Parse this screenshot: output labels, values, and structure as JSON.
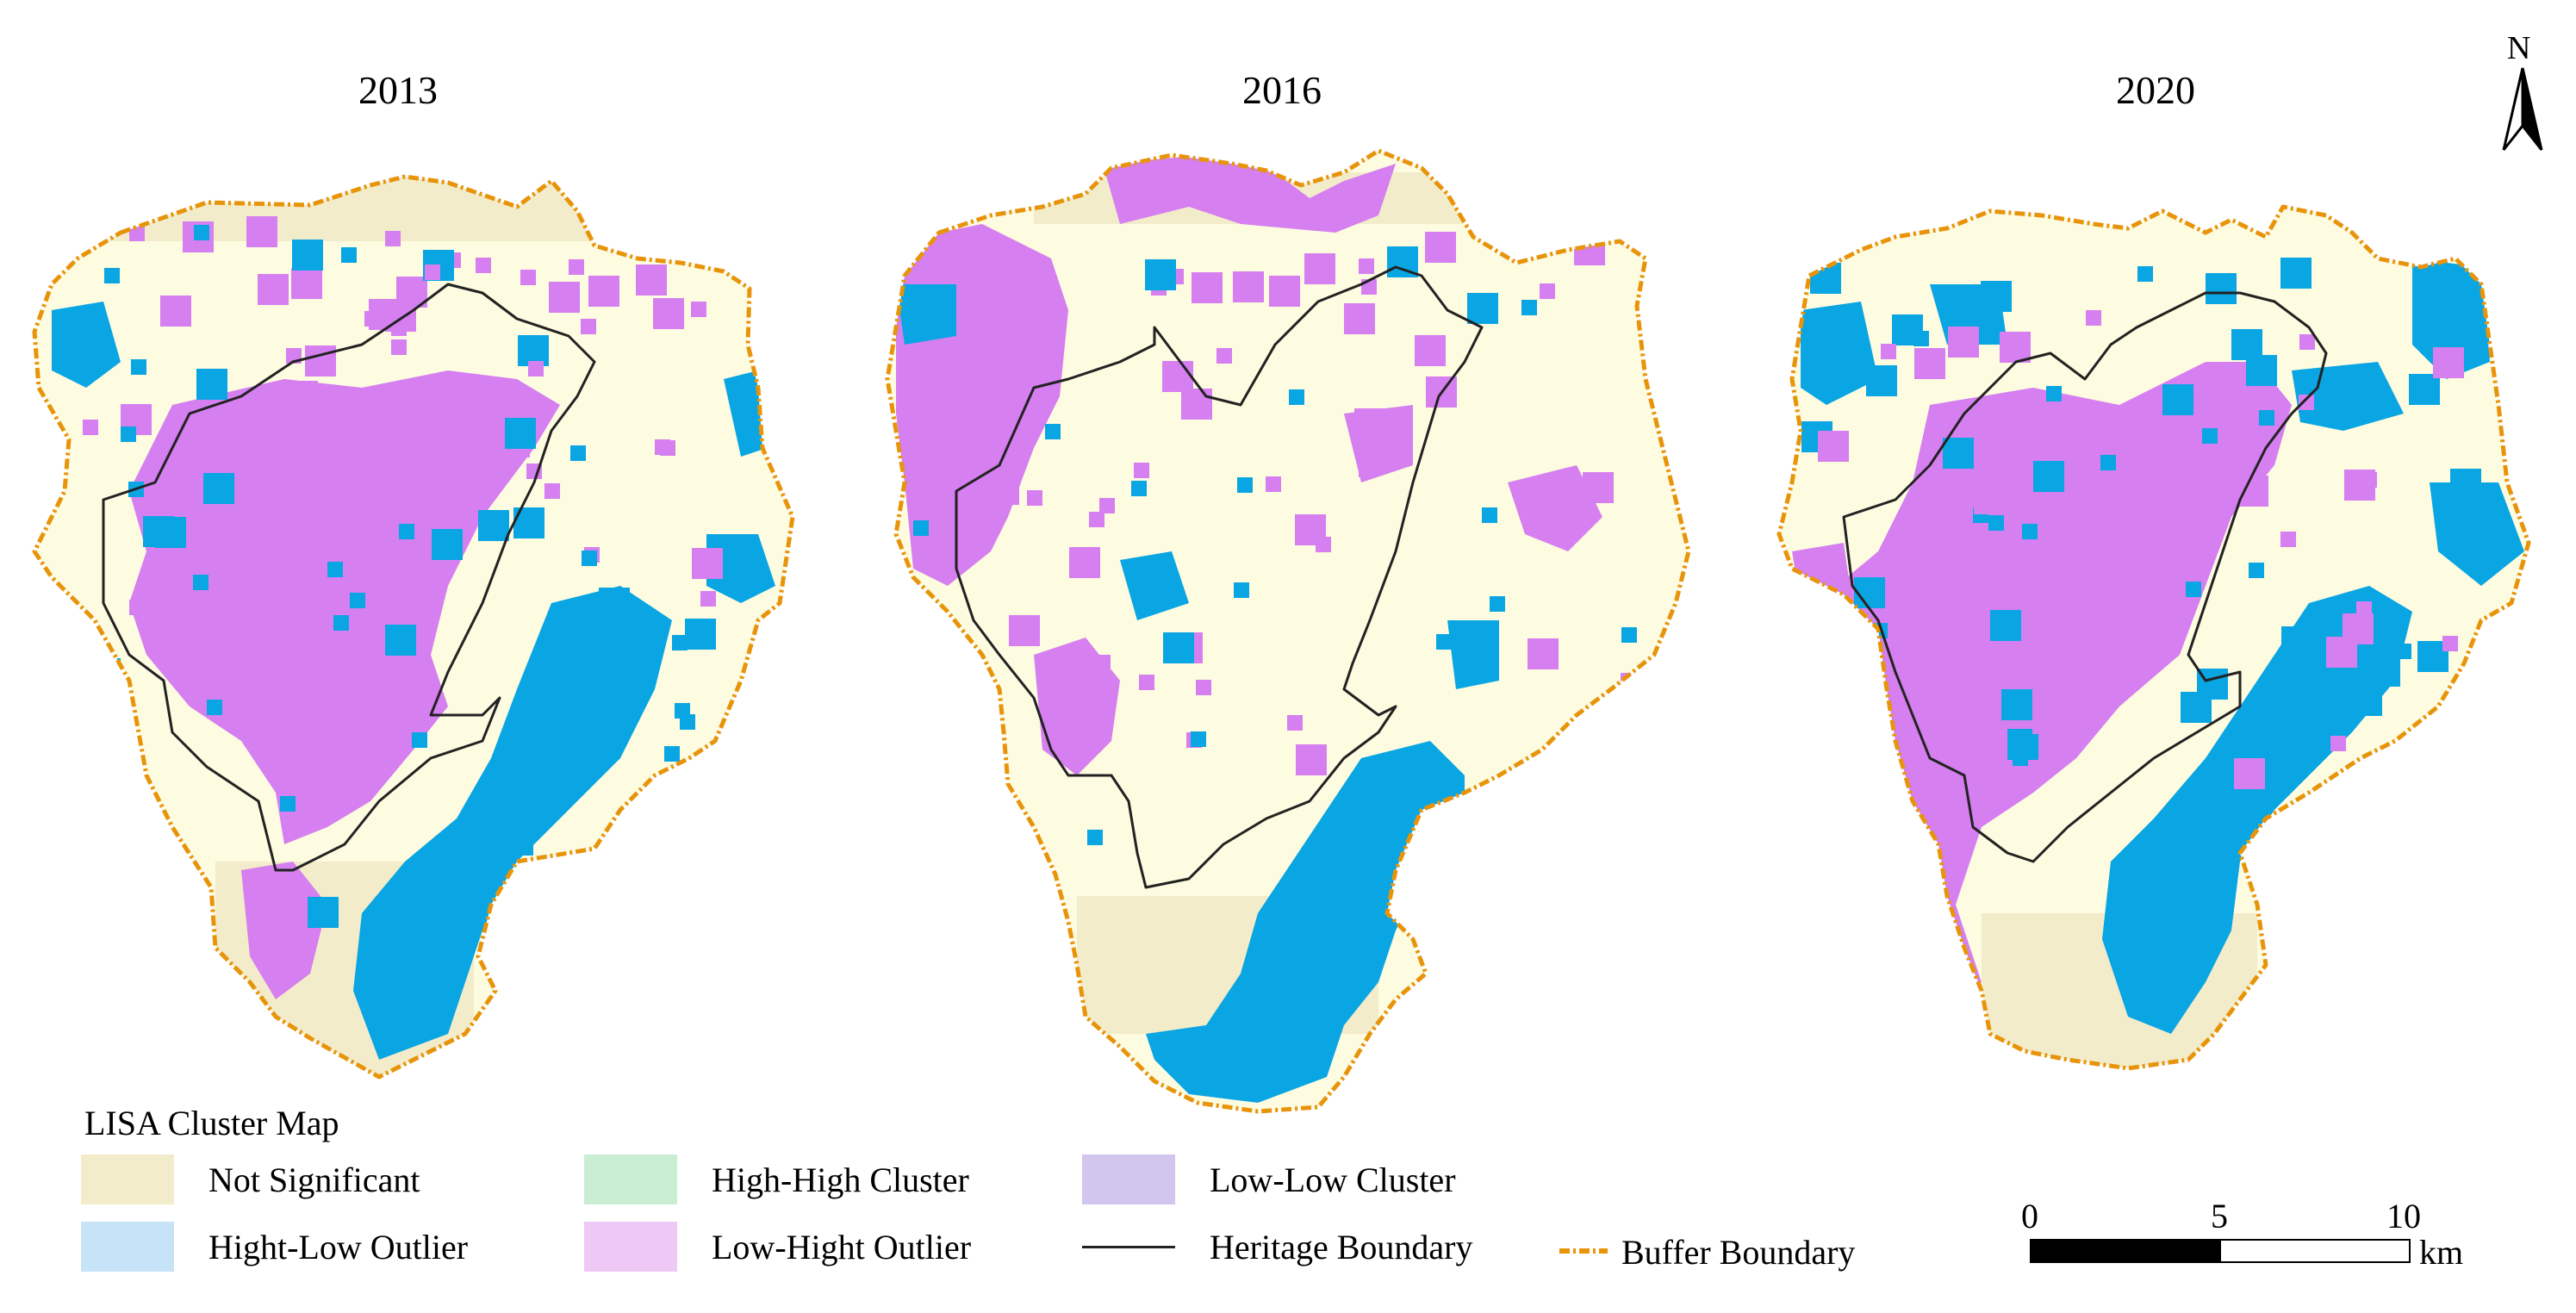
{
  "panels": [
    {
      "year": "2013"
    },
    {
      "year": "2016"
    },
    {
      "year": "2020"
    }
  ],
  "colors": {
    "not_significant": "#f3ecca",
    "not_significant_inner": "#fdfbe0",
    "high_high": "#c9eed3",
    "low_low": "#d2c6ef",
    "high_low": "#0aa5e3",
    "low_high": "#d57ff0",
    "heritage_boundary": "#222222",
    "buffer_boundary": "#e8940a",
    "legend_high_low": "#c6e3f7",
    "legend_low_high": "#efc9f5"
  },
  "legend": {
    "title": "LISA Cluster Map",
    "not_significant": "Not Significant",
    "high_high": "High-High Cluster",
    "low_low": "Low-Low Cluster",
    "high_low": "Hight-Low Outlier",
    "low_high": "Low-Hight Outlier",
    "heritage": "Heritage Boundary",
    "buffer": "Buffer Boundary"
  },
  "north_arrow": {
    "label": "N",
    "icon": "north-arrow-icon"
  },
  "scale_bar": {
    "ticks": [
      "0",
      "5",
      "10"
    ],
    "unit": "km"
  }
}
